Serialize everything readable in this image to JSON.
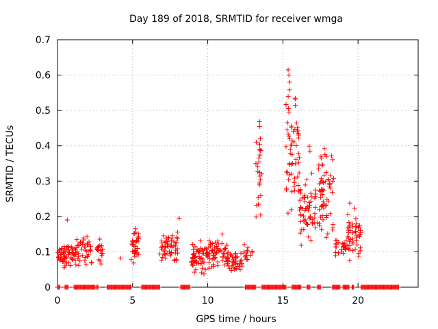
{
  "chart_data": {
    "type": "scatter",
    "title": "Day 189 of 2018, SRMTID for receiver wmga",
    "xlabel": "GPS time / hours",
    "ylabel": "SRMTID / TECUs",
    "xlim": [
      0,
      24
    ],
    "ylim": [
      0,
      0.7
    ],
    "x_ticks": [
      0,
      5,
      10,
      15,
      20
    ],
    "x_tick_labels": [
      "0",
      "5",
      "10",
      "15",
      "20"
    ],
    "y_ticks": [
      0,
      0.1,
      0.2,
      0.3,
      0.4,
      0.5,
      0.6,
      0.7
    ],
    "y_tick_labels": [
      "0",
      "0.1",
      "0.2",
      "0.3",
      "0.4",
      "0.5",
      "0.6",
      "0.7"
    ],
    "grid": true,
    "marker": "+",
    "series": [
      {
        "name": "SRMTID",
        "color": "#ff0000",
        "clusters": [
          {
            "x": [
              0.0,
              1.2
            ],
            "y": [
              0.05,
              0.13
            ],
            "n": 60
          },
          {
            "x": [
              1.2,
              2.3
            ],
            "y": [
              0.05,
              0.17
            ],
            "n": 45
          },
          {
            "x": [
              2.6,
              3.0
            ],
            "y": [
              0.05,
              0.15
            ],
            "n": 20
          },
          {
            "x": [
              4.9,
              5.4
            ],
            "y": [
              0.03,
              0.19
            ],
            "n": 35
          },
          {
            "x": [
              6.8,
              8.0
            ],
            "y": [
              0.04,
              0.18
            ],
            "n": 55
          },
          {
            "x": [
              8.9,
              10.0
            ],
            "y": [
              0.03,
              0.14
            ],
            "n": 60
          },
          {
            "x": [
              10.0,
              11.3
            ],
            "y": [
              0.03,
              0.16
            ],
            "n": 60
          },
          {
            "x": [
              11.3,
              12.3
            ],
            "y": [
              0.03,
              0.11
            ],
            "n": 45
          },
          {
            "x": [
              12.4,
              13.0
            ],
            "y": [
              0.06,
              0.13
            ],
            "n": 15
          },
          {
            "x": [
              13.2,
              13.6
            ],
            "y": [
              0.15,
              0.47
            ],
            "n": 20
          },
          {
            "x": [
              15.2,
              16.1
            ],
            "y": [
              0.15,
              0.62
            ],
            "n": 55
          },
          {
            "x": [
              16.1,
              17.2
            ],
            "y": [
              0.08,
              0.37
            ],
            "n": 60
          },
          {
            "x": [
              17.2,
              18.4
            ],
            "y": [
              0.1,
              0.4
            ],
            "n": 60
          },
          {
            "x": [
              18.5,
              19.2
            ],
            "y": [
              0.08,
              0.15
            ],
            "n": 25
          },
          {
            "x": [
              19.2,
              20.2
            ],
            "y": [
              0.05,
              0.24
            ],
            "n": 50
          }
        ],
        "points": [
          {
            "x": 0.65,
            "y": 0.19
          },
          {
            "x": 4.2,
            "y": 0.082
          },
          {
            "x": 8.1,
            "y": 0.195
          },
          {
            "x": 15.35,
            "y": 0.615
          },
          {
            "x": 15.4,
            "y": 0.6
          },
          {
            "x": 15.45,
            "y": 0.58
          },
          {
            "x": 15.35,
            "y": 0.54
          },
          {
            "x": 15.4,
            "y": 0.495
          },
          {
            "x": 15.45,
            "y": 0.42
          },
          {
            "x": 13.45,
            "y": 0.468
          },
          {
            "x": 13.45,
            "y": 0.455
          },
          {
            "x": 13.5,
            "y": 0.42
          },
          {
            "x": 13.45,
            "y": 0.39
          },
          {
            "x": 13.4,
            "y": 0.365
          },
          {
            "x": 13.45,
            "y": 0.325
          },
          {
            "x": 17.55,
            "y": 0.365
          },
          {
            "x": 17.6,
            "y": 0.345
          },
          {
            "x": 17.75,
            "y": 0.392
          },
          {
            "x": 17.8,
            "y": 0.375
          },
          {
            "x": 17.9,
            "y": 0.37
          },
          {
            "x": 16.75,
            "y": 0.399
          },
          {
            "x": 16.8,
            "y": 0.385
          },
          {
            "x": 19.45,
            "y": 0.238
          },
          {
            "x": 19.9,
            "y": 0.18
          },
          {
            "x": 15.6,
            "y": 0.27
          },
          {
            "x": 15.55,
            "y": 0.32
          },
          {
            "x": 15.65,
            "y": 0.35
          }
        ],
        "zero_runs": [
          [
            0.0,
            0.15
          ],
          [
            0.5,
            0.7
          ],
          [
            1.1,
            2.5
          ],
          [
            2.6,
            2.7
          ],
          [
            3.3,
            4.9
          ],
          [
            5.6,
            6.8
          ],
          [
            8.2,
            8.8
          ],
          [
            12.5,
            13.2
          ],
          [
            13.6,
            15.2
          ],
          [
            15.6,
            16.2
          ],
          [
            16.6,
            16.8
          ],
          [
            17.3,
            17.5
          ],
          [
            18.3,
            18.8
          ],
          [
            19.0,
            19.4
          ],
          [
            19.6,
            19.7
          ],
          [
            20.2,
            22.7
          ]
        ]
      }
    ]
  }
}
